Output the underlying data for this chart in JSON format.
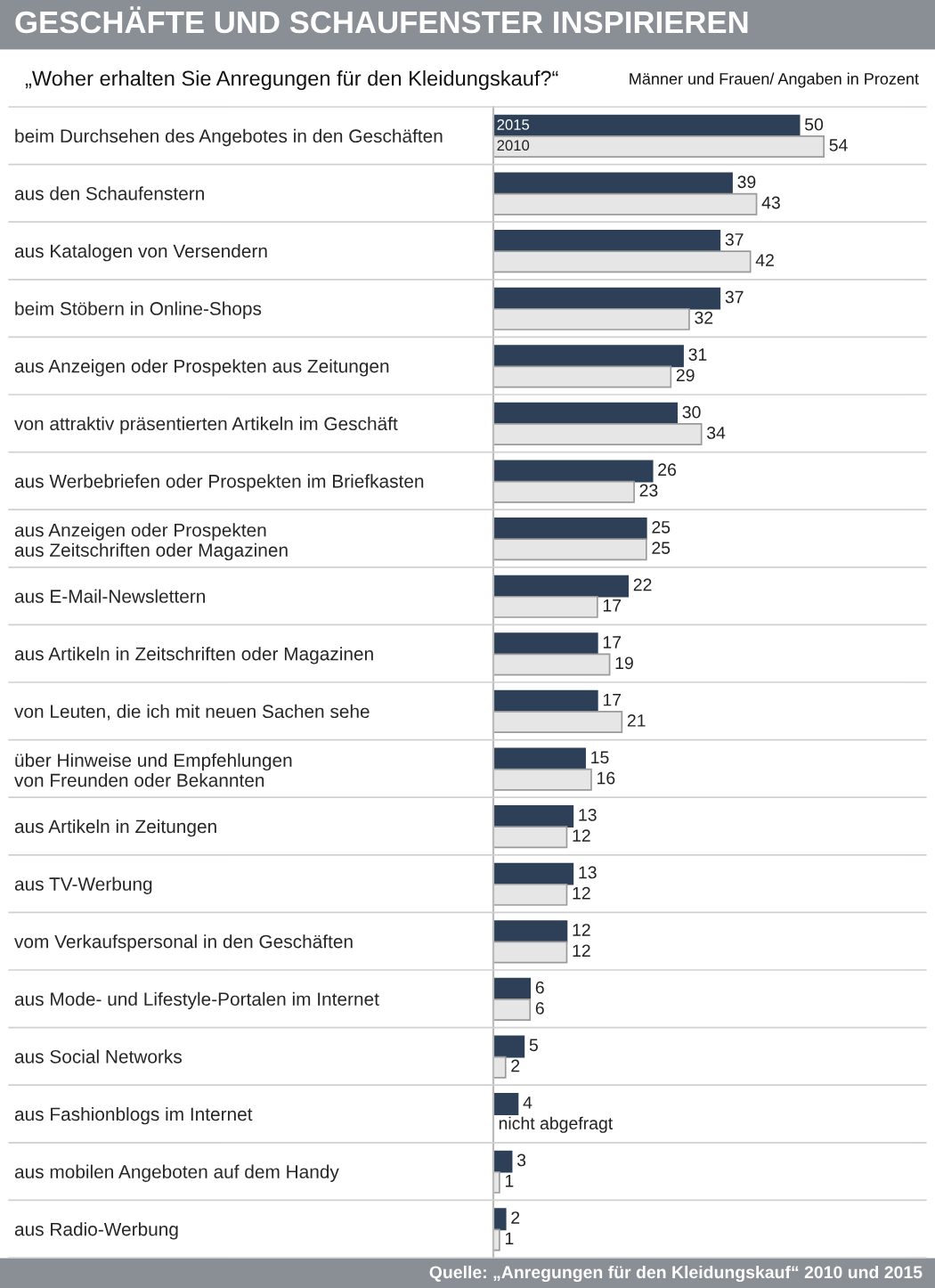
{
  "chart_data": {
    "type": "bar",
    "orientation": "horizontal",
    "title": "GESCHÄFTE UND SCHAUFENSTER INSPIRIEREN",
    "subtitle": "„Woher erhalten Sie Anregungen für den Kleidungskauf?“",
    "categories": [
      "beim Durchsehen des Angebotes in den Geschäften",
      "aus den Schaufenstern",
      "aus Katalogen von Versendern",
      "beim Stöbern in Online-Shops",
      "aus Anzeigen oder Prospekten aus Zeitungen",
      "von attraktiv präsentierten Artikeln im Geschäft",
      "aus Werbebriefen oder Prospekten im Briefkasten",
      "aus Anzeigen oder Prospekten\naus Zeitschriften oder Magazinen",
      "aus E-Mail-Newslettern",
      "aus Artikeln in Zeitschriften oder Magazinen",
      "von Leuten, die ich mit neuen Sachen sehe",
      "über Hinweise und Empfehlungen\nvon Freunden oder Bekannten",
      "aus Artikeln in Zeitungen",
      "aus TV-Werbung",
      "vom Verkaufspersonal in den Geschäften",
      "aus Mode- und Lifestyle-Portalen im Internet",
      "aus Social Networks",
      "aus Fashionblogs im Internet",
      "aus mobilen Angeboten auf dem Handy",
      "aus Radio-Werbung"
    ],
    "series": [
      {
        "name": "2015",
        "color": "#2e4058",
        "values": [
          50,
          39,
          37,
          37,
          31,
          30,
          26,
          25,
          22,
          17,
          17,
          15,
          13,
          13,
          12,
          6,
          5,
          4,
          3,
          2
        ],
        "value_labels": [
          "50",
          "39",
          "37",
          "37",
          "31",
          "30",
          "26",
          "25",
          "22",
          "17",
          "17",
          "15",
          "13",
          "13",
          "12",
          "6",
          "5",
          "4",
          "3",
          "2"
        ]
      },
      {
        "name": "2010",
        "color": "#e6e6e6",
        "values": [
          54,
          43,
          42,
          32,
          29,
          34,
          23,
          25,
          17,
          19,
          21,
          16,
          12,
          12,
          12,
          6,
          2,
          null,
          1,
          1
        ],
        "value_labels": [
          "54",
          "43",
          "42",
          "32",
          "29",
          "34",
          "23",
          "25",
          "17",
          "19",
          "21",
          "16",
          "12",
          "12",
          "12",
          "6",
          "2",
          "nicht abgefragt",
          "1",
          "1"
        ]
      }
    ],
    "annotations": [
      "Männer und Frauen/ Angaben in Prozent",
      "Quelle: „Anregungen für den Kleidungskauf“ 2010 und 2015"
    ]
  }
}
